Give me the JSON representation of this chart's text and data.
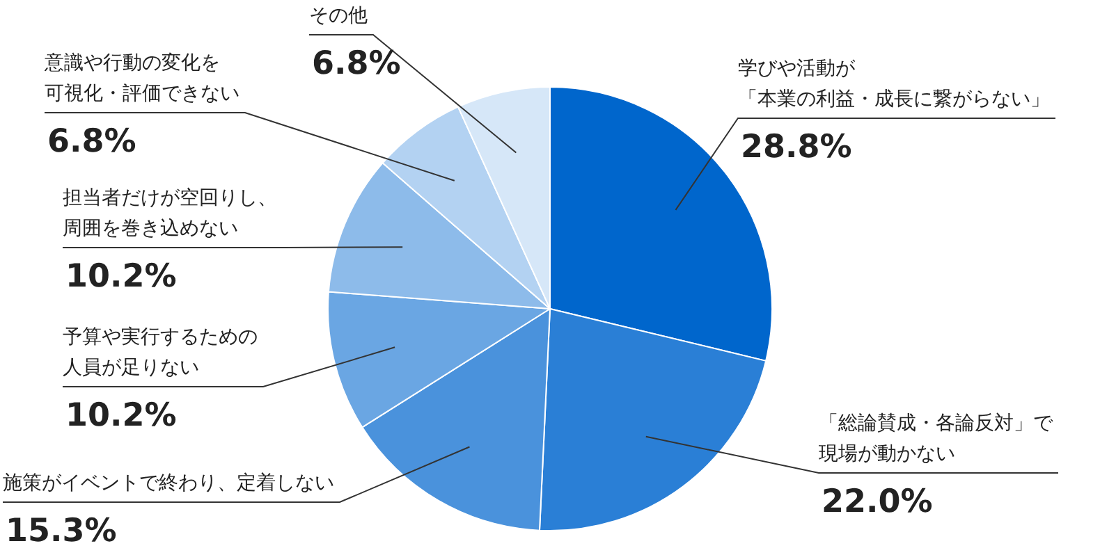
{
  "chart_data": {
    "type": "pie",
    "categories": [
      "学びや活動が「本業の利益・成長に繋がらない」",
      "「総論賛成・各論反対」で現場が動かない",
      "施策がイベントで終わり、定着しない",
      "予算や実行するための人員が足りない",
      "担当者だけが空回りし、周囲を巻き込めない",
      "意識や行動の変化を可視化・評価できない",
      "その他"
    ],
    "values": [
      28.8,
      22.0,
      15.3,
      10.2,
      10.2,
      6.8,
      6.8
    ],
    "value_labels": [
      "28.8%",
      "22.0%",
      "15.3%",
      "10.2%",
      "10.2%",
      "6.8%",
      "6.8%"
    ],
    "colors": [
      "#0066cc",
      "#2a7fd6",
      "#4a92dc",
      "#6aa6e3",
      "#8dbbea",
      "#b3d2f2",
      "#d6e7f8"
    ],
    "legend": false
  }
}
